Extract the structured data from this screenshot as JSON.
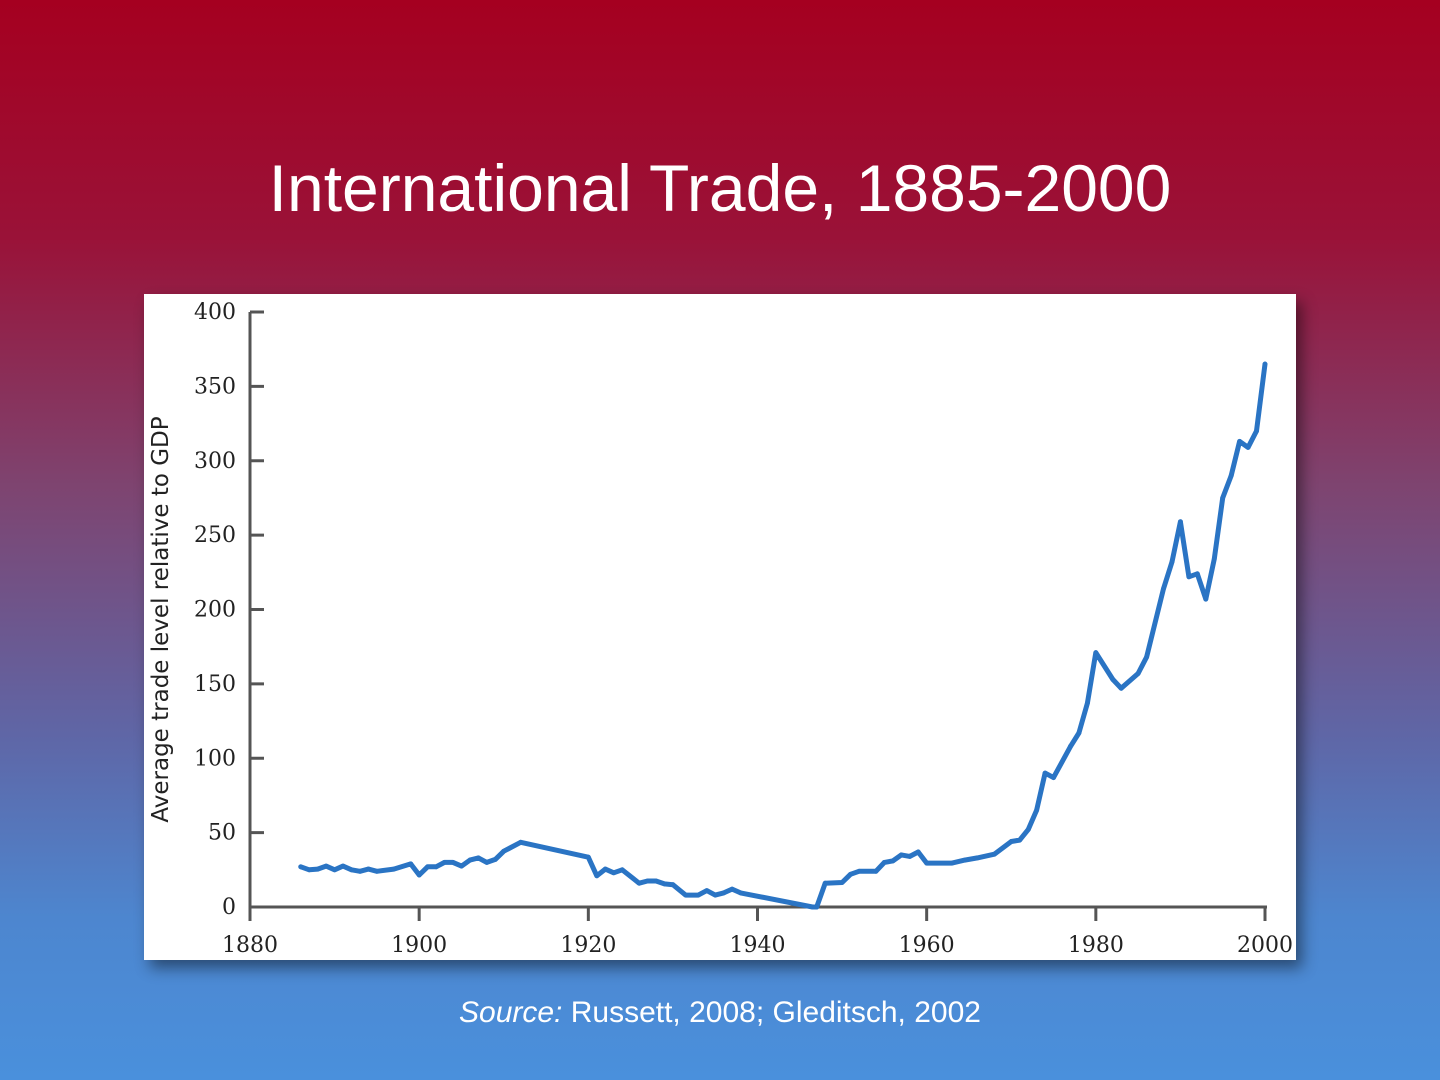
{
  "slide": {
    "title": "International Trade, 1885-2000",
    "source_label": "Source:",
    "source_text": " Russett, 2008; Gleditsch, 2002"
  },
  "chart_data": {
    "type": "line",
    "title": "International Trade, 1885-2000",
    "xlabel": "",
    "ylabel": "Average trade level relative to GDP",
    "xlim": [
      1880,
      2000
    ],
    "ylim": [
      0,
      400
    ],
    "xticks": [
      "1880",
      "1900",
      "1920",
      "1940",
      "1960",
      "1980",
      "2000"
    ],
    "yticks": [
      "0",
      "50",
      "100",
      "150",
      "200",
      "250",
      "300",
      "350",
      "400"
    ],
    "grid": false,
    "line_color": "#2a74c4",
    "series": [
      {
        "name": "Average trade level",
        "x": [
          1886,
          1887,
          1888,
          1889,
          1890,
          1891,
          1892,
          1893,
          1894,
          1895,
          1897,
          1899,
          1900,
          1901,
          1902,
          1903,
          1904,
          1905,
          1906,
          1907,
          1908,
          1909,
          1910,
          1912,
          1920,
          1921,
          1922,
          1923,
          1924,
          1926,
          1927,
          1928,
          1929,
          1930,
          1931.5,
          1933,
          1934,
          1935,
          1936,
          1937,
          1938,
          1946.5,
          1947,
          1948,
          1950,
          1951,
          1952,
          1954,
          1955,
          1956,
          1957,
          1958,
          1959,
          1960,
          1963,
          1964.5,
          1966,
          1968,
          1970,
          1971,
          1972,
          1973,
          1974,
          1975,
          1977,
          1978,
          1979,
          1980,
          1982,
          1983,
          1985,
          1986,
          1988,
          1989,
          1990,
          1991,
          1992,
          1993,
          1994,
          1995,
          1996,
          1997,
          1998,
          1999,
          2000
        ],
        "y": [
          27,
          25,
          25.5,
          27.5,
          25,
          27.5,
          25,
          24,
          25.5,
          24,
          25.5,
          29,
          21.5,
          27,
          27,
          30,
          30,
          27.5,
          31.5,
          33,
          30,
          32,
          37.5,
          43.5,
          33.5,
          21,
          25.5,
          23,
          25,
          16,
          17.5,
          17.5,
          15.5,
          15,
          8,
          8,
          11,
          8,
          9.5,
          12,
          9.5,
          0,
          0,
          16,
          16.5,
          22,
          24,
          24,
          30,
          31,
          35,
          34,
          37,
          29.5,
          29.5,
          31.5,
          33,
          35.5,
          44,
          45,
          52,
          65,
          90,
          87,
          108,
          117,
          137,
          171,
          153,
          147,
          157,
          168,
          214,
          232,
          259,
          222,
          224,
          207,
          234,
          275,
          290,
          313,
          309,
          320,
          365
        ]
      }
    ]
  }
}
